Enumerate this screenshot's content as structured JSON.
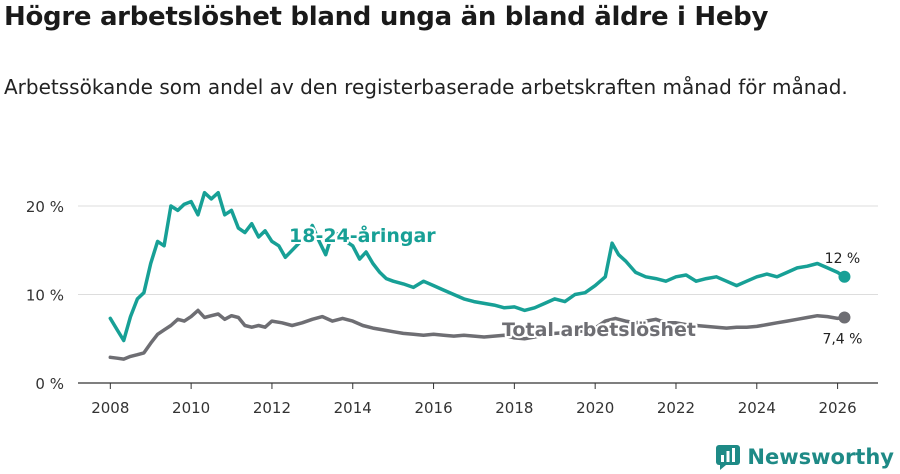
{
  "title": "Högre arbetslöshet bland unga än bland äldre i Heby",
  "subtitle": "Arbetssökande som andel av den registerbaserade arbetskraften månad för månad.",
  "brand": "Newsworthy",
  "colors": {
    "youth": "#17a096",
    "total": "#6e6e73",
    "grid": "#dddddd",
    "axis": "#333333",
    "brand": "#1e8a86"
  },
  "chart_data": {
    "type": "line",
    "title": "Högre arbetslöshet bland unga än bland äldre i Heby",
    "xlabel": "",
    "ylabel": "",
    "xlim": [
      2007.2,
      2027.0
    ],
    "ylim": [
      0,
      22
    ],
    "y_ticks": [
      0,
      10,
      20
    ],
    "y_tick_labels": [
      "0 %",
      "10 %",
      "20 %"
    ],
    "x_ticks": [
      2008,
      2010,
      2012,
      2014,
      2016,
      2018,
      2020,
      2022,
      2024,
      2026
    ],
    "x_tick_labels": [
      "2008",
      "2010",
      "2012",
      "2014",
      "2016",
      "2018",
      "2020",
      "2022",
      "2024",
      "2026"
    ],
    "series": [
      {
        "name": "18-24-åringar",
        "label": "18-24-åringar",
        "end_label": "12 %",
        "x": [
          2008.0,
          2008.17,
          2008.33,
          2008.5,
          2008.67,
          2008.83,
          2009.0,
          2009.17,
          2009.33,
          2009.5,
          2009.67,
          2009.83,
          2010.0,
          2010.17,
          2010.33,
          2010.5,
          2010.67,
          2010.83,
          2011.0,
          2011.17,
          2011.33,
          2011.5,
          2011.67,
          2011.83,
          2012.0,
          2012.17,
          2012.33,
          2012.5,
          2012.67,
          2012.83,
          2013.0,
          2013.17,
          2013.33,
          2013.5,
          2013.67,
          2013.83,
          2014.0,
          2014.17,
          2014.33,
          2014.5,
          2014.67,
          2014.83,
          2015.0,
          2015.25,
          2015.5,
          2015.75,
          2016.0,
          2016.25,
          2016.5,
          2016.75,
          2017.0,
          2017.25,
          2017.5,
          2017.75,
          2018.0,
          2018.25,
          2018.5,
          2018.75,
          2019.0,
          2019.25,
          2019.5,
          2019.75,
          2020.0,
          2020.25,
          2020.42,
          2020.58,
          2020.75,
          2021.0,
          2021.25,
          2021.5,
          2021.75,
          2022.0,
          2022.25,
          2022.5,
          2022.75,
          2023.0,
          2023.25,
          2023.5,
          2023.75,
          2024.0,
          2024.25,
          2024.5,
          2024.75,
          2025.0,
          2025.25,
          2025.5,
          2025.75,
          2026.0,
          2026.17
        ],
        "values": [
          7.3,
          6.0,
          4.8,
          7.5,
          9.5,
          10.2,
          13.5,
          16.0,
          15.5,
          20.0,
          19.5,
          20.2,
          20.5,
          19.0,
          21.5,
          20.8,
          21.5,
          19.0,
          19.5,
          17.5,
          17.0,
          18.0,
          16.5,
          17.2,
          16.0,
          15.5,
          14.2,
          15.0,
          15.8,
          16.5,
          17.8,
          16.0,
          14.5,
          17.0,
          16.8,
          16.0,
          15.5,
          14.0,
          14.8,
          13.5,
          12.5,
          11.8,
          11.5,
          11.2,
          10.8,
          11.5,
          11.0,
          10.5,
          10.0,
          9.5,
          9.2,
          9.0,
          8.8,
          8.5,
          8.6,
          8.2,
          8.5,
          9.0,
          9.5,
          9.2,
          10.0,
          10.2,
          11.0,
          12.0,
          15.8,
          14.5,
          13.8,
          12.5,
          12.0,
          11.8,
          11.5,
          12.0,
          12.2,
          11.5,
          11.8,
          12.0,
          11.5,
          11.0,
          11.5,
          12.0,
          12.3,
          12.0,
          12.5,
          13.0,
          13.2,
          13.5,
          13.0,
          12.5,
          12.0
        ]
      },
      {
        "name": "Total arbetslöshet",
        "label": "Total arbetslöshet",
        "end_label": "7,4 %",
        "x": [
          2008.0,
          2008.17,
          2008.33,
          2008.5,
          2008.67,
          2008.83,
          2009.0,
          2009.17,
          2009.33,
          2009.5,
          2009.67,
          2009.83,
          2010.0,
          2010.17,
          2010.33,
          2010.5,
          2010.67,
          2010.83,
          2011.0,
          2011.17,
          2011.33,
          2011.5,
          2011.67,
          2011.83,
          2012.0,
          2012.25,
          2012.5,
          2012.75,
          2013.0,
          2013.25,
          2013.5,
          2013.75,
          2014.0,
          2014.25,
          2014.5,
          2014.75,
          2015.0,
          2015.25,
          2015.5,
          2015.75,
          2016.0,
          2016.25,
          2016.5,
          2016.75,
          2017.0,
          2017.25,
          2017.5,
          2017.75,
          2018.0,
          2018.25,
          2018.5,
          2018.75,
          2019.0,
          2019.25,
          2019.5,
          2019.75,
          2020.0,
          2020.25,
          2020.5,
          2020.75,
          2021.0,
          2021.25,
          2021.5,
          2021.75,
          2022.0,
          2022.25,
          2022.5,
          2022.75,
          2023.0,
          2023.25,
          2023.5,
          2023.75,
          2024.0,
          2024.25,
          2024.5,
          2024.75,
          2025.0,
          2025.25,
          2025.5,
          2025.75,
          2026.0,
          2026.17
        ],
        "values": [
          2.9,
          2.8,
          2.7,
          3.0,
          3.2,
          3.4,
          4.5,
          5.5,
          6.0,
          6.5,
          7.2,
          7.0,
          7.5,
          8.2,
          7.4,
          7.6,
          7.8,
          7.2,
          7.6,
          7.4,
          6.5,
          6.3,
          6.5,
          6.3,
          7.0,
          6.8,
          6.5,
          6.8,
          7.2,
          7.5,
          7.0,
          7.3,
          7.0,
          6.5,
          6.2,
          6.0,
          5.8,
          5.6,
          5.5,
          5.4,
          5.5,
          5.4,
          5.3,
          5.4,
          5.3,
          5.2,
          5.3,
          5.4,
          5.1,
          5.0,
          5.2,
          5.5,
          5.6,
          5.7,
          5.8,
          5.9,
          6.2,
          7.0,
          7.3,
          7.0,
          6.8,
          7.0,
          7.2,
          6.8,
          6.8,
          6.6,
          6.5,
          6.4,
          6.3,
          6.2,
          6.3,
          6.3,
          6.4,
          6.6,
          6.8,
          7.0,
          7.2,
          7.4,
          7.6,
          7.5,
          7.3,
          7.4
        ]
      }
    ]
  }
}
